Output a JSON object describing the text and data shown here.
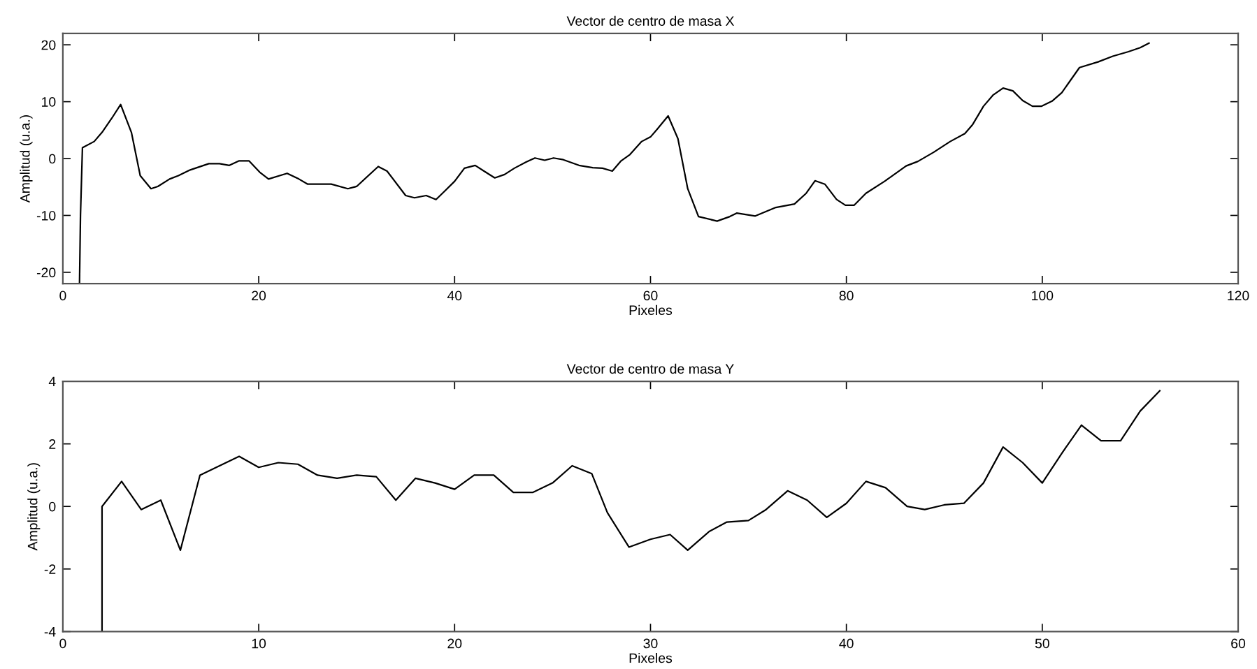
{
  "chart_data": [
    {
      "type": "line",
      "title": "Vector de centro de masa X",
      "xlabel": "Pixeles",
      "ylabel": "Amplitud (u.a.)",
      "xlim": [
        0,
        120
      ],
      "xticks": [
        0,
        20,
        40,
        60,
        80,
        100,
        120
      ],
      "ylim": [
        -22,
        22
      ],
      "yticks": [
        -20,
        -10,
        0,
        10,
        20
      ],
      "grid": false,
      "legend": false,
      "marker": "none",
      "line_style": "solid",
      "series": [
        {
          "color": "#000000",
          "x": [
            1.7,
            1.8,
            2,
            3.2,
            4,
            5,
            5.9,
            7,
            7.9,
            9,
            9.7,
            10.9,
            11.8,
            13,
            14.9,
            16,
            17,
            18,
            19,
            20.1,
            21,
            22.9,
            24.1,
            25,
            27.4,
            29.1,
            30,
            32.2,
            33.1,
            35,
            35.9,
            37.1,
            38.1,
            39,
            40,
            41,
            42.1,
            43,
            44.1,
            45.1,
            46.1,
            47.3,
            48.2,
            49.2,
            50.1,
            51.1,
            52.7,
            54.1,
            55.1,
            56.1,
            57,
            57.9,
            59.1,
            60,
            60.7,
            61.8,
            62.8,
            63.8,
            64.9,
            66.8,
            68.1,
            68.8,
            70.7,
            72.8,
            74.7,
            75.9,
            76.8,
            77.8,
            79,
            79.9,
            80.8,
            82,
            83.9,
            86.1,
            87.3,
            88.9,
            90.6,
            92.1,
            92.9,
            94,
            95,
            96,
            97,
            98,
            99,
            99.9,
            101,
            102,
            103.8,
            105.7,
            107.2,
            108.8,
            110,
            110.9
          ],
          "values": [
            -22,
            -10,
            1.9,
            3,
            4.6,
            7.1,
            9.5,
            4.6,
            -3,
            -5.3,
            -4.9,
            -3.6,
            -3,
            -2,
            -0.9,
            -0.9,
            -1.2,
            -0.4,
            -0.4,
            -2.4,
            -3.6,
            -2.6,
            -3.6,
            -4.5,
            -4.5,
            -5.3,
            -4.9,
            -1.4,
            -2.2,
            -6.5,
            -6.9,
            -6.5,
            -7.2,
            -5.7,
            -4,
            -1.7,
            -1.2,
            -2.2,
            -3.4,
            -2.8,
            -1.7,
            -0.6,
            0.1,
            -0.3,
            0.1,
            -0.2,
            -1.2,
            -1.6,
            -1.7,
            -2.2,
            -0.4,
            0.7,
            3,
            3.8,
            5.2,
            7.5,
            3.5,
            -5.3,
            -10.2,
            -11,
            -10.2,
            -9.6,
            -10.1,
            -8.6,
            -8,
            -6.1,
            -3.9,
            -4.5,
            -7.2,
            -8.2,
            -8.2,
            -6.1,
            -4,
            -1.3,
            -0.5,
            1.1,
            3,
            4.4,
            6,
            9.2,
            11.2,
            12.4,
            11.9,
            10.2,
            9.2,
            9.2,
            10.1,
            11.6,
            16,
            17,
            18,
            18.8,
            19.5,
            20.3
          ]
        }
      ]
    },
    {
      "type": "line",
      "title": "Vector de centro de masa Y",
      "xlabel": "Pixeles",
      "ylabel": "Amplitud (u.a.)",
      "xlim": [
        0,
        60
      ],
      "xticks": [
        0,
        10,
        20,
        30,
        40,
        50,
        60
      ],
      "ylim": [
        -4,
        4
      ],
      "yticks": [
        -4,
        -2,
        0,
        2,
        4
      ],
      "grid": false,
      "legend": false,
      "marker": "none",
      "line_style": "solid",
      "series": [
        {
          "color": "#000000",
          "x": [
            2,
            2,
            2,
            3,
            4,
            5,
            6,
            7,
            8,
            9,
            10,
            11,
            12,
            13,
            14,
            15,
            16,
            17,
            18,
            19,
            20,
            21,
            22,
            23,
            24,
            25,
            26,
            27,
            27.8,
            28.9,
            30,
            31,
            31.9,
            33,
            33.9,
            35,
            35.9,
            37,
            38,
            39,
            40,
            41,
            42,
            43.1,
            44,
            45,
            46,
            47,
            48,
            49,
            50,
            51,
            52,
            53,
            54,
            55,
            56
          ],
          "values": [
            -4,
            -2,
            0,
            0.8,
            -0.1,
            0.2,
            -1.4,
            1,
            1.3,
            1.6,
            1.25,
            1.4,
            1.35,
            1,
            0.9,
            1,
            0.95,
            0.2,
            0.9,
            0.75,
            0.55,
            1,
            1,
            0.45,
            0.45,
            0.75,
            1.3,
            1.05,
            -0.2,
            -1.3,
            -1.05,
            -0.9,
            -1.4,
            -0.8,
            -0.5,
            -0.45,
            -0.1,
            0.5,
            0.2,
            -0.35,
            0.1,
            0.8,
            0.6,
            0,
            -0.1,
            0.05,
            0.1,
            0.75,
            1.9,
            1.4,
            0.75,
            1.7,
            2.6,
            2.1,
            2.1,
            3.05,
            3.7
          ]
        }
      ]
    }
  ]
}
